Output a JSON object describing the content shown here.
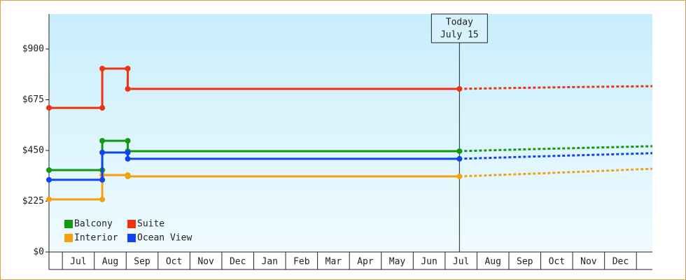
{
  "chart_data": {
    "type": "step-line",
    "categories": [
      "Jul",
      "Aug",
      "Sep",
      "Oct",
      "Nov",
      "Dec",
      "Jan",
      "Feb",
      "Mar",
      "Apr",
      "May",
      "Jun",
      "Jul",
      "Aug",
      "Sep",
      "Oct",
      "Nov",
      "Dec"
    ],
    "x": [
      -0.42,
      1.25,
      1.25,
      2.05,
      2.05,
      12.45
    ],
    "forecast_x": [
      12.45,
      14.5,
      16.5,
      18.5
    ],
    "xlim": [
      -0.42,
      18.5
    ],
    "ylim": [
      0,
      1055
    ],
    "yticks": [
      {
        "value": 0,
        "label": "$0"
      },
      {
        "value": 225,
        "label": "$225"
      },
      {
        "value": 450,
        "label": "$450"
      },
      {
        "value": 675,
        "label": "$675"
      },
      {
        "value": 900,
        "label": "$900"
      }
    ],
    "series": [
      {
        "name": "Balcony",
        "color": "#119911",
        "values": [
          363,
          363,
          493,
          493,
          447,
          447
        ],
        "forecast_values": [
          447,
          455,
          462,
          469
        ]
      },
      {
        "name": "Suite",
        "color": "#ee3311",
        "values": [
          639,
          639,
          813,
          813,
          723,
          723
        ],
        "forecast_values": [
          723,
          728,
          732,
          735
        ]
      },
      {
        "name": "Interior",
        "color": "#f5a011",
        "values": [
          233,
          233,
          341,
          341,
          335,
          335
        ],
        "forecast_values": [
          335,
          346,
          357,
          369
        ]
      },
      {
        "name": "Ocean View",
        "color": "#1144ee",
        "values": [
          320,
          320,
          441,
          441,
          413,
          413
        ],
        "forecast_values": [
          413,
          422,
          430,
          438
        ]
      }
    ],
    "annotation": {
      "lines": [
        "Today",
        "July 15"
      ],
      "x": 12.45
    }
  }
}
